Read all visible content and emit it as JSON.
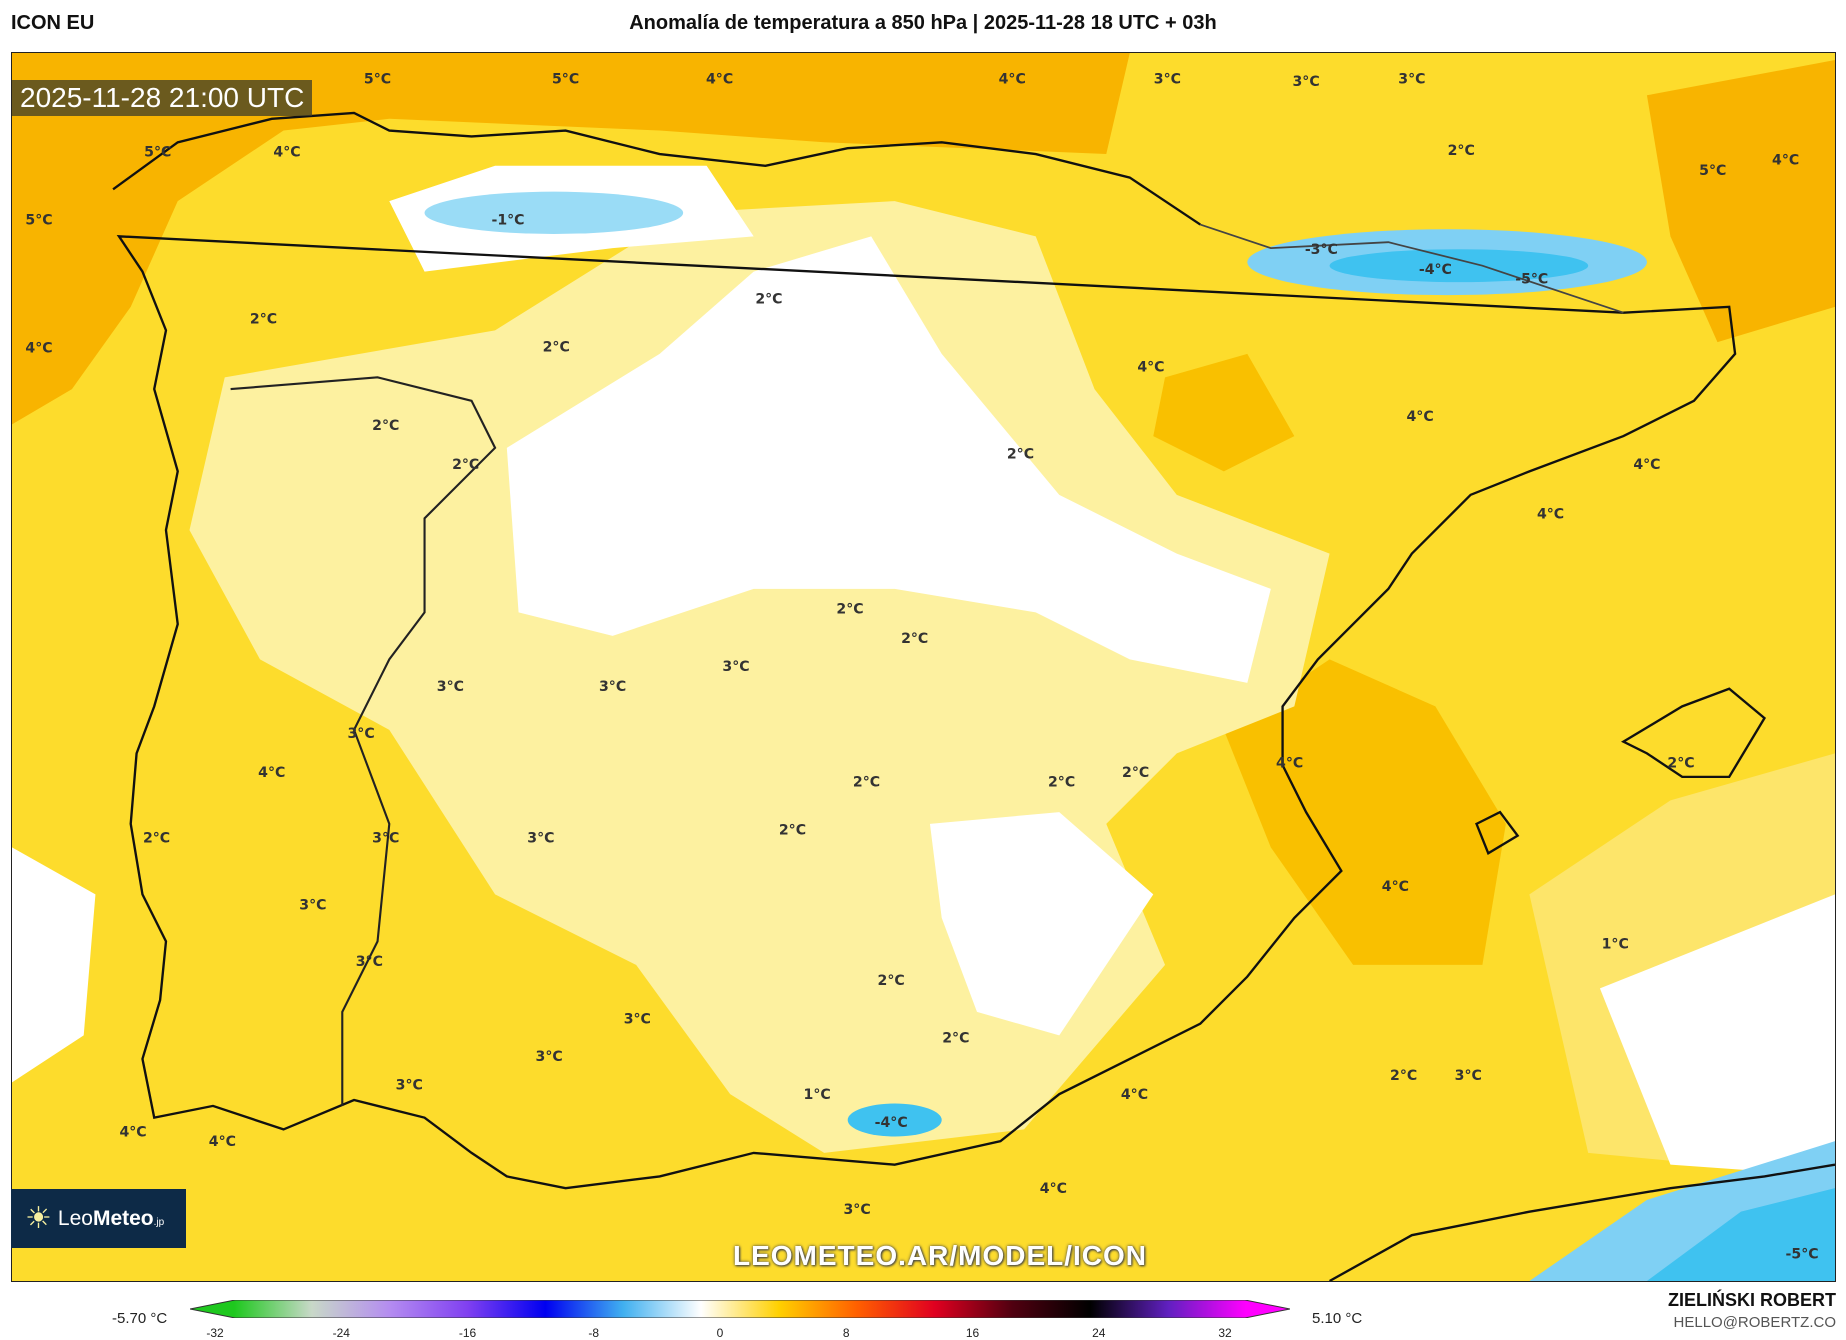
{
  "header": {
    "model": "ICON EU",
    "title": "Anomalía de temperatura a 850 hPa | 2025-11-28 18 UTC + 03h"
  },
  "map": {
    "timestamp": "2025-11-28 21:00 UTC",
    "watermark": "LEOMETEO.AR/MODEL/ICON",
    "logo": {
      "text_light": "Leo",
      "text_bold": "Meteo",
      "suffix": ".jp",
      "icon": "sun-icon"
    },
    "contour_labels": [
      "5°C",
      "4°C",
      "5°C",
      "5°C",
      "4°C",
      "4°C",
      "3°C",
      "3°C",
      "3°C",
      "5°C",
      "-1°C",
      "2°C",
      "5°C",
      "4°C",
      "-3°C",
      "-4°C",
      "-5°C",
      "2°C",
      "2°C",
      "4°C",
      "2°C",
      "4°C",
      "4°C",
      "2°C",
      "2°C",
      "2°C",
      "4°C",
      "4°C",
      "2°C",
      "2°C",
      "3°C",
      "3°C",
      "3°C",
      "3°C",
      "4°C",
      "4°C",
      "2°C",
      "2°C",
      "2°C",
      "2°C",
      "2°C",
      "3°C",
      "3°C",
      "2°C",
      "4°C",
      "3°C",
      "1°C",
      "3°C",
      "2°C",
      "3°C",
      "2°C",
      "3°C",
      "2°C",
      "3°C",
      "3°C",
      "1°C",
      "4°C",
      "-4°C",
      "4°C",
      "4°C",
      "4°C",
      "3°C",
      "-5°C"
    ],
    "colors": {
      "warm_orange": "#f8b400",
      "yellow": "#fddc2c",
      "pale_yellow": "#fdf1a0",
      "cold_blue": "#3fc2f0",
      "sea_border": "#222222"
    }
  },
  "colorbar": {
    "min_label": "-5.70 °C",
    "max_label": "5.10 °C",
    "ticks": [
      "-32",
      "-24",
      "-16",
      "-8",
      "0",
      "8",
      "16",
      "24",
      "32"
    ],
    "range": [
      -32,
      32
    ],
    "stops": [
      "#1ec81e",
      "#c8d8c8",
      "#b48cf0",
      "#8040f0",
      "#0000f0",
      "#40b0f0",
      "#ffffff",
      "#ffd000",
      "#ff6000",
      "#e00020",
      "#500010",
      "#000000",
      "#6020c0",
      "#ff00ff"
    ]
  },
  "credits": {
    "author": "ZIELIŃSKI ROBERT",
    "email": "HELLO@ROBERTZ.CO"
  }
}
